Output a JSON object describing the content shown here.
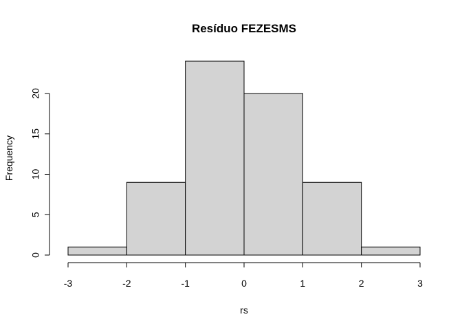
{
  "chart_data": {
    "type": "bar",
    "title": "Resíduo  FEZESMS",
    "xlabel": "rs",
    "ylabel": "Frequency",
    "bins": [
      {
        "from": -3,
        "to": -2,
        "count": 1
      },
      {
        "from": -2,
        "to": -1,
        "count": 9
      },
      {
        "from": -1,
        "to": 0,
        "count": 24
      },
      {
        "from": 0,
        "to": 1,
        "count": 20
      },
      {
        "from": 1,
        "to": 2,
        "count": 9
      },
      {
        "from": 2,
        "to": 3,
        "count": 1
      }
    ],
    "xlim": [
      -3,
      3
    ],
    "ylim": [
      0,
      24
    ],
    "x_ticks": [
      "-3",
      "-2",
      "-1",
      "0",
      "1",
      "2",
      "3"
    ],
    "y_ticks": [
      "0",
      "5",
      "10",
      "15",
      "20"
    ],
    "bar_color": "#d3d3d3",
    "grid": false,
    "legend": "none"
  }
}
